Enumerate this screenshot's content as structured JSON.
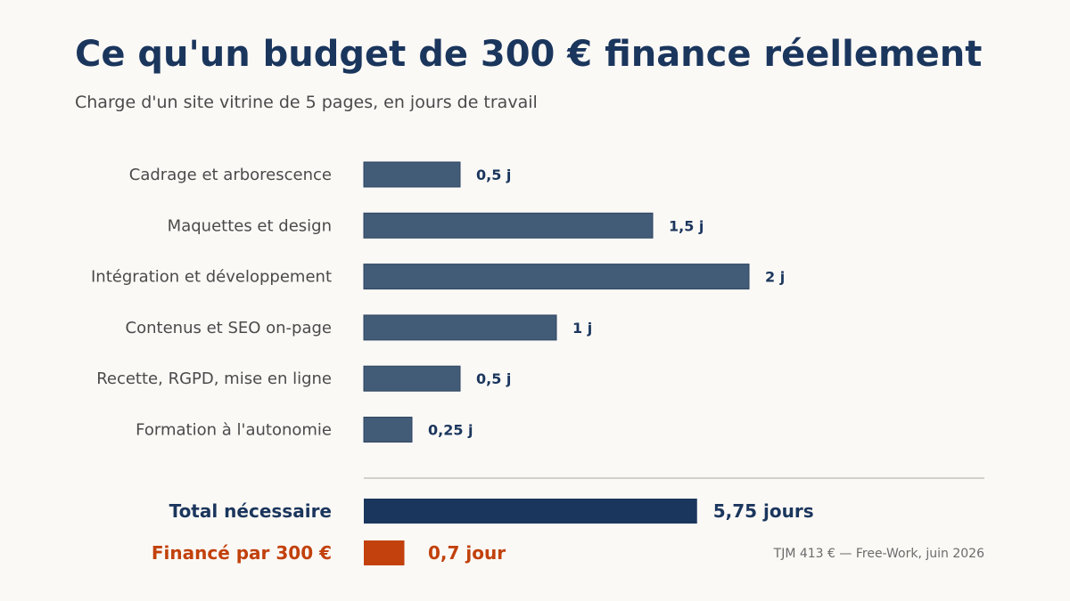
{
  "chart_data": {
    "type": "bar",
    "orientation": "horizontal",
    "title": "Ce qu'un budget de 300 € finance réellement",
    "subtitle": "Charge d'un site vitrine de 5 pages, en jours de travail",
    "categories": [
      "Cadrage et arborescence",
      "Maquettes et design",
      "Intégration et développement",
      "Contenus et SEO on-page",
      "Recette, RGPD, mise en ligne",
      "Formation à l'autonomie"
    ],
    "values": [
      0.5,
      1.5,
      2,
      1,
      0.5,
      0.25
    ],
    "value_labels": [
      "0,5 j",
      "1,5 j",
      "2 j",
      "1 j",
      "0,5 j",
      "0,25 j"
    ],
    "totals": [
      {
        "label": "Total nécessaire",
        "value": 5.75,
        "value_label": "5,75 jours"
      },
      {
        "label": "Financé par 300 €",
        "value": 0.7,
        "value_label": "0,7 jour"
      }
    ],
    "source": "TJM 413 € — Free-Work, juin 2026",
    "grid": false,
    "colors": {
      "bar": "#425b77",
      "bar_stroke": "#2e4560",
      "total_bar": "#1b365d",
      "financed_bar": "#c2410c",
      "title": "#1b365d",
      "text": "#4a4a4a",
      "source": "#6b6b6b",
      "divider": "#d4d0ca"
    }
  }
}
